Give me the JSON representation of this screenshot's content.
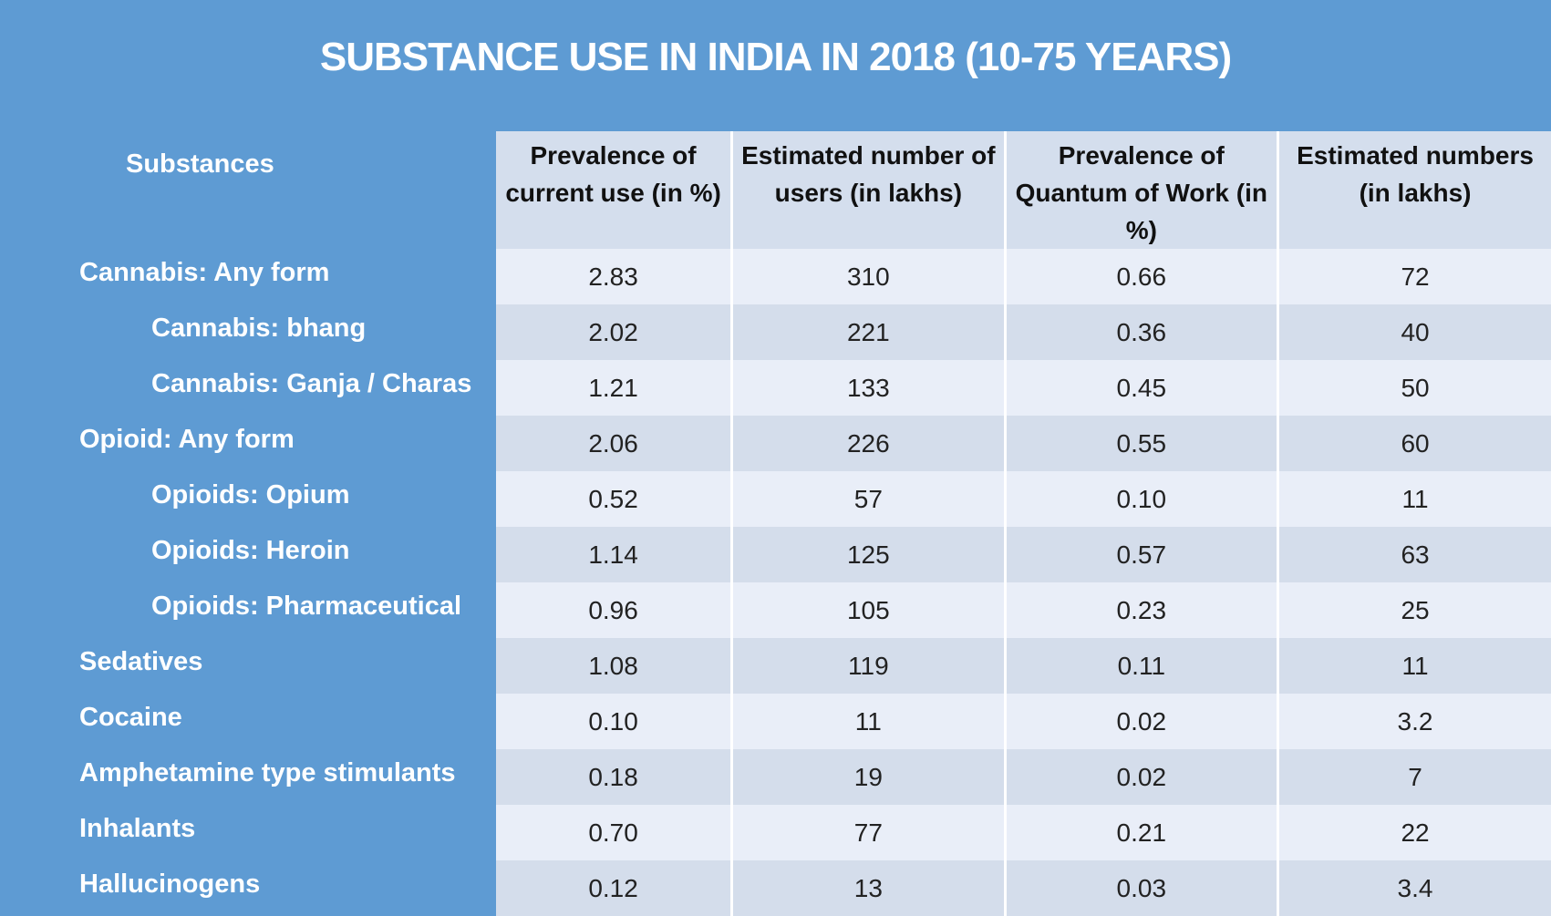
{
  "title": "SUBSTANCE USE IN INDIA IN 2018 (10-75 YEARS)",
  "substances_header": "Substances",
  "columns": [
    "Prevalence of current use (in %)",
    "Estimated number of users (in lakhs)",
    "Prevalence of Quantum of Work (in %)",
    "Estimated numbers (in lakhs)"
  ],
  "rows": [
    {
      "label": "Cannabis: Any form",
      "level": 0,
      "values": [
        "2.83",
        "310",
        "0.66",
        "72"
      ]
    },
    {
      "label": "Cannabis: bhang",
      "level": 1,
      "values": [
        "2.02",
        "221",
        "0.36",
        "40"
      ]
    },
    {
      "label": "Cannabis: Ganja / Charas",
      "level": 1,
      "values": [
        "1.21",
        "133",
        "0.45",
        "50"
      ]
    },
    {
      "label": "Opioid: Any form",
      "level": 0,
      "values": [
        "2.06",
        "226",
        "0.55",
        "60"
      ]
    },
    {
      "label": "Opioids: Opium",
      "level": 1,
      "values": [
        "0.52",
        "57",
        "0.10",
        "11"
      ]
    },
    {
      "label": "Opioids: Heroin",
      "level": 1,
      "values": [
        "1.14",
        "125",
        "0.57",
        "63"
      ]
    },
    {
      "label": "Opioids: Pharmaceutical",
      "level": 1,
      "values": [
        "0.96",
        "105",
        "0.23",
        "25"
      ]
    },
    {
      "label": "Sedatives",
      "level": 0,
      "values": [
        "1.08",
        "119",
        "0.11",
        "11"
      ]
    },
    {
      "label": "Cocaine",
      "level": 0,
      "values": [
        "0.10",
        "11",
        "0.02",
        "3.2"
      ]
    },
    {
      "label": "Amphetamine type stimulants",
      "level": 0,
      "values": [
        "0.18",
        "19",
        "0.02",
        "7"
      ]
    },
    {
      "label": "Inhalants",
      "level": 0,
      "values": [
        "0.70",
        "77",
        "0.21",
        "22"
      ]
    },
    {
      "label": "Hallucinogens",
      "level": 0,
      "values": [
        "0.12",
        "13",
        "0.03",
        "3.4"
      ]
    }
  ]
}
